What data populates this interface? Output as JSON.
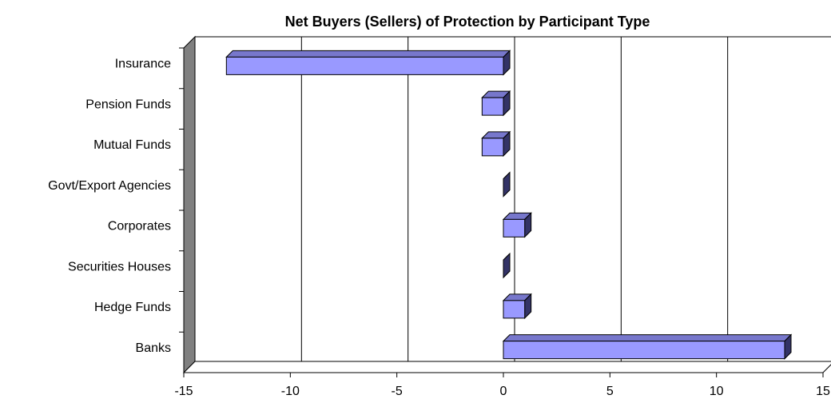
{
  "chart_data": {
    "type": "bar3d_horizontal",
    "title": "Net Buyers (Sellers) of Protection by Participant Type",
    "categories": [
      "Insurance",
      "Pension Funds",
      "Mutual Funds",
      "Govt/Export Agencies",
      "Corporates",
      "Securities Houses",
      "Hedge Funds",
      "Banks"
    ],
    "values": [
      -13.0,
      -1.0,
      -1.0,
      0,
      1.0,
      0,
      1.0,
      13.2
    ],
    "color": "#9999ff",
    "xlim": [
      -15,
      15
    ],
    "xticks": [
      -15,
      -10,
      -5,
      0,
      5,
      10,
      15
    ],
    "grid": true
  }
}
